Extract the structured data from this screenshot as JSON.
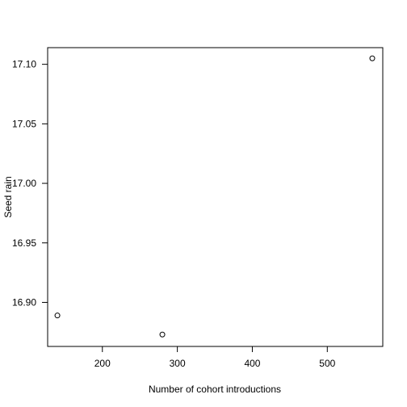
{
  "chart_data": {
    "type": "scatter",
    "title": "",
    "xlabel": "Number of cohort introductions",
    "ylabel": "Seed rain",
    "xlim": [
      127,
      574
    ],
    "ylim": [
      16.863,
      17.114
    ],
    "x_ticks": [
      200,
      300,
      400,
      500
    ],
    "y_ticks": [
      16.9,
      16.95,
      17.0,
      17.05,
      17.1
    ],
    "x_tick_labels": [
      "200",
      "300",
      "400",
      "500"
    ],
    "y_tick_labels": [
      "16.90",
      "16.95",
      "17.00",
      "17.05",
      "17.10"
    ],
    "grid": false,
    "points": [
      {
        "x": 140,
        "y": 16.889
      },
      {
        "x": 280,
        "y": 16.873
      },
      {
        "x": 560,
        "y": 17.105
      }
    ],
    "colors": {
      "axis": "#000000",
      "marker": "#000000",
      "background": "#ffffff"
    }
  }
}
